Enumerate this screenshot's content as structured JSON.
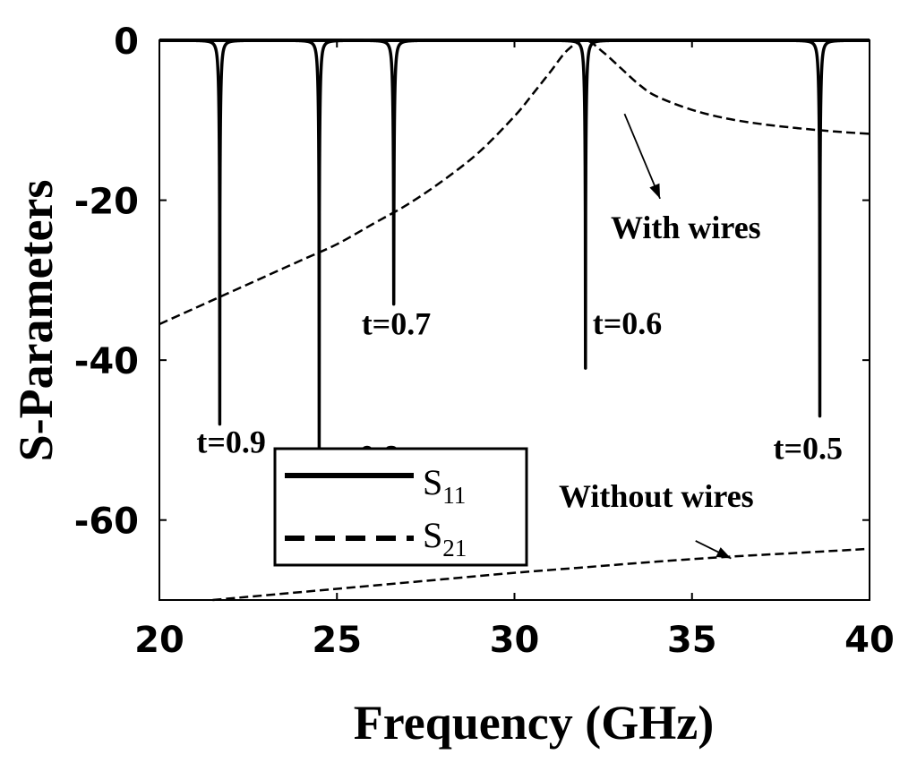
{
  "chart_data": {
    "type": "line",
    "xlabel": "Frequency (GHz)",
    "ylabel": "S-Parameters",
    "xlim": [
      20,
      40
    ],
    "ylim": [
      -70,
      0
    ],
    "xticks": [
      20,
      25,
      30,
      35,
      40
    ],
    "yticks": [
      0,
      -20,
      -40,
      -60
    ],
    "xtick_labels": [
      "20",
      "25",
      "30",
      "35",
      "40"
    ],
    "ytick_labels": [
      "0",
      "-20",
      "-40",
      "-60"
    ],
    "grid": false,
    "legend_position": "lower-left",
    "legend": [
      {
        "base": "S",
        "sub": "11",
        "style": "solid"
      },
      {
        "base": "S",
        "sub": "21",
        "style": "dashed"
      }
    ],
    "s11_resonances": [
      {
        "label": "t=0.9",
        "f0": 21.7,
        "min_db": -48
      },
      {
        "label": "t=0.8",
        "f0": 24.5,
        "min_db": -52
      },
      {
        "label": "t=0.7",
        "f0": 26.6,
        "min_db": -33
      },
      {
        "label": "t=0.6",
        "f0": 32.0,
        "min_db": -41
      },
      {
        "label": "t=0.5",
        "f0": 38.6,
        "min_db": -47
      }
    ],
    "series": [
      {
        "name": "With wires",
        "style": "dashed",
        "x": [
          20,
          21,
          22,
          23,
          24,
          25,
          26,
          27,
          28,
          29,
          30,
          30.5,
          31,
          31.5,
          32,
          32.5,
          33,
          33.5,
          34,
          35,
          36,
          37,
          38,
          39,
          40
        ],
        "y": [
          -35.5,
          -33.5,
          -31.5,
          -29.5,
          -27.5,
          -25.5,
          -23,
          -20.5,
          -17.5,
          -14,
          -9.5,
          -6.8,
          -4,
          -1.2,
          0,
          -1.5,
          -3.5,
          -5.5,
          -7,
          -8.7,
          -9.8,
          -10.5,
          -11,
          -11.4,
          -11.7
        ]
      },
      {
        "name": "Without wires",
        "style": "dashed",
        "x": [
          21.5,
          24,
          26,
          28,
          30,
          32,
          34,
          36,
          38,
          40
        ],
        "y": [
          -70,
          -69,
          -68.2,
          -67.4,
          -66.6,
          -65.9,
          -65.2,
          -64.6,
          -64.1,
          -63.6
        ]
      }
    ],
    "annotations": [
      {
        "text": "With wires",
        "at": [
          33.1,
          -9.2
        ],
        "arrow_to": [
          34.1,
          -19.8
        ]
      },
      {
        "text": "Without  wires",
        "at": [
          35.1,
          -62.6
        ],
        "arrow_to": [
          36.1,
          -64.8
        ]
      }
    ]
  }
}
